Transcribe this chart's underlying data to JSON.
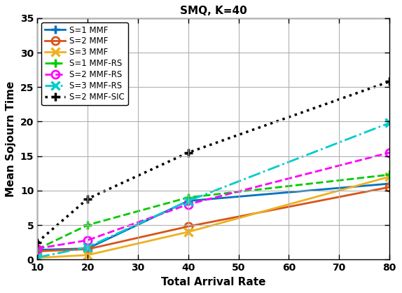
{
  "title": "SMQ, K=40",
  "xlabel": "Total Arrival Rate",
  "ylabel": "Mean Sojourn Time",
  "x": [
    10,
    20,
    40,
    80
  ],
  "s1_mmf": [
    1.4,
    1.6,
    8.5,
    11.0
  ],
  "s2_mmf": [
    1.2,
    1.5,
    4.8,
    10.5
  ],
  "s3_mmf": [
    0.25,
    0.65,
    4.0,
    12.0
  ],
  "s1_mmfrs": [
    1.5,
    5.0,
    9.0,
    12.3
  ],
  "s2_mmfrs": [
    1.6,
    2.8,
    8.0,
    15.5
  ],
  "s3_mmfrs": [
    0.3,
    1.8,
    8.5,
    19.8
  ],
  "s2_mmfsic": [
    2.5,
    8.8,
    15.5,
    25.8
  ],
  "colors": {
    "s1_mmf": "#0072BD",
    "s2_mmf": "#D95319",
    "s3_mmf": "#EDB120",
    "s1_mmfrs": "#00CC00",
    "s2_mmfrs": "#FF00FF",
    "s3_mmfrs": "#00CCCC",
    "s2_mmfsic": "#000000"
  },
  "ylim": [
    0,
    35
  ],
  "xlim": [
    10,
    80
  ],
  "xticks": [
    10,
    20,
    30,
    40,
    50,
    60,
    70,
    80
  ],
  "yticks": [
    0,
    5,
    10,
    15,
    20,
    25,
    30,
    35
  ],
  "legend_labels": [
    "S=1 MMF",
    "S=2 MMF",
    "S=3 MMF",
    "S=1 MMF-RS",
    "S=2 MMF-RS",
    "S=3 MMF-RS",
    "S=2 MMF-SIC"
  ]
}
